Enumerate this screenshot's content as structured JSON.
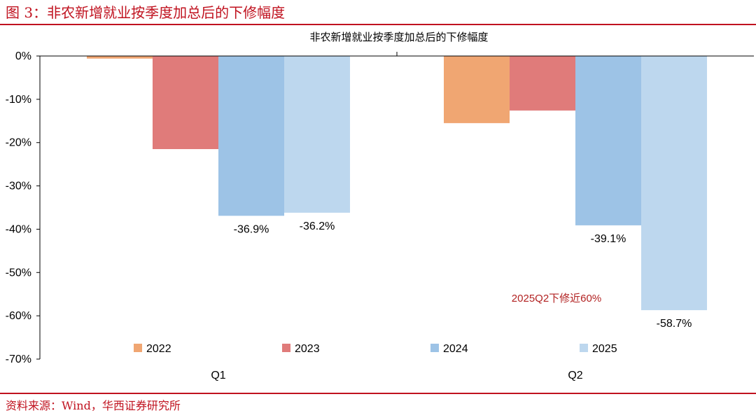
{
  "figure_title": "图 3：非农新增就业按季度加总后的下修幅度",
  "source": "资料来源：Wind，华西证券研究所",
  "colors": {
    "brand_red": "#c0121f",
    "annotation_red": "#b22222"
  },
  "chart_data": {
    "type": "bar",
    "title": "非农新增就业按季度加总后的下修幅度",
    "categories": [
      "Q1",
      "Q2"
    ],
    "series": [
      {
        "name": "2022",
        "color": "#f0a672",
        "values": [
          -0.6,
          -15.5
        ],
        "labels": [
          "",
          ""
        ]
      },
      {
        "name": "2023",
        "color": "#e07b7a",
        "values": [
          -21.5,
          -12.6
        ],
        "labels": [
          "",
          ""
        ]
      },
      {
        "name": "2024",
        "color": "#9dc3e6",
        "values": [
          -36.9,
          -39.1
        ],
        "labels": [
          "-36.9%",
          "-39.1%"
        ]
      },
      {
        "name": "2025",
        "color": "#bdd7ee",
        "values": [
          -36.2,
          -58.7
        ],
        "labels": [
          "-36.2%",
          "-58.7%"
        ]
      }
    ],
    "ylim": [
      -70,
      0
    ],
    "yticks": [
      "0%",
      "-10%",
      "-20%",
      "-30%",
      "-40%",
      "-50%",
      "-60%",
      "-70%"
    ],
    "ytick_values": [
      0,
      -10,
      -20,
      -30,
      -40,
      -50,
      -60,
      -70
    ],
    "annotation": "2025Q2下修近60%",
    "legend_position": "bottom-inside",
    "grid": false
  }
}
